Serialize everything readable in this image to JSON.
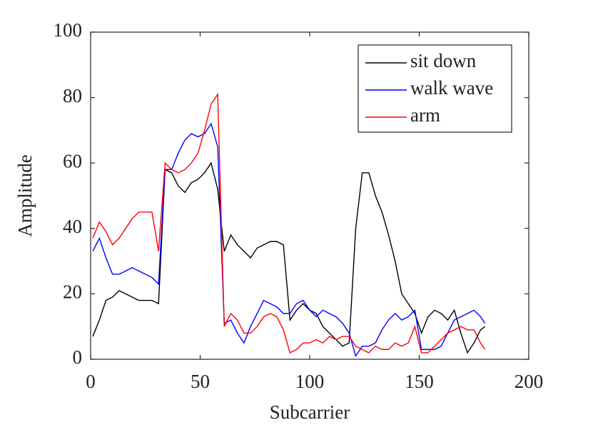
{
  "chart_data": {
    "type": "line",
    "xlabel": "Subcarrier",
    "ylabel": "Amplitude",
    "x": [
      1,
      4,
      7,
      10,
      13,
      16,
      19,
      22,
      25,
      28,
      31,
      34,
      37,
      40,
      43,
      46,
      49,
      52,
      55,
      58,
      61,
      64,
      67,
      70,
      73,
      76,
      79,
      82,
      85,
      88,
      91,
      94,
      97,
      100,
      103,
      106,
      109,
      112,
      115,
      118,
      121,
      124,
      127,
      130,
      133,
      136,
      139,
      142,
      145,
      148,
      151,
      154,
      157,
      160,
      163,
      166,
      169,
      172,
      175,
      178,
      180
    ],
    "series": [
      {
        "name": "sit down",
        "color": "#000000",
        "values": [
          7,
          12,
          18,
          19,
          21,
          20,
          19,
          18,
          18,
          18,
          17,
          58,
          57,
          53,
          51,
          54,
          55,
          57,
          60,
          52,
          33,
          38,
          35,
          33,
          31,
          34,
          35,
          36,
          36,
          35,
          12,
          15,
          17,
          15,
          14,
          10,
          8,
          6,
          4,
          5,
          40,
          57,
          57,
          50,
          45,
          38,
          30,
          20,
          17,
          14,
          8,
          13,
          15,
          14,
          12,
          15,
          8,
          2,
          5,
          9,
          10
        ]
      },
      {
        "name": "walk wave",
        "color": "#0000ff",
        "values": [
          33,
          37,
          31,
          26,
          26,
          27,
          28,
          27,
          26,
          25,
          23,
          58,
          58,
          63,
          67,
          69,
          68,
          69,
          72,
          65,
          11,
          12,
          8,
          5,
          10,
          14,
          18,
          17,
          16,
          14,
          14,
          17,
          18,
          15,
          13,
          15,
          14,
          13,
          11,
          8,
          1,
          4,
          4,
          5,
          9,
          12,
          14,
          12,
          13,
          15,
          3,
          3,
          3,
          4,
          8,
          12,
          13,
          14,
          15,
          13,
          11
        ]
      },
      {
        "name": "arm",
        "color": "#ff0000",
        "values": [
          37,
          42,
          39,
          35,
          37,
          40,
          43,
          45,
          45,
          45,
          33,
          60,
          58,
          57,
          58,
          60,
          63,
          70,
          78,
          81,
          10,
          14,
          12,
          8,
          8,
          10,
          13,
          14,
          13,
          9,
          2,
          3,
          5,
          5,
          6,
          5,
          7,
          6,
          7,
          7,
          4,
          3,
          2,
          4,
          3,
          3,
          5,
          4,
          5,
          10,
          2,
          2,
          4,
          6,
          8,
          9,
          10,
          9,
          9,
          5,
          3
        ]
      }
    ],
    "xlim": [
      0,
      200
    ],
    "xticks": [
      0,
      50,
      100,
      150,
      200
    ],
    "ylim": [
      0,
      100
    ],
    "yticks": [
      0,
      20,
      40,
      60,
      80,
      100
    ],
    "legend": "upper right"
  }
}
